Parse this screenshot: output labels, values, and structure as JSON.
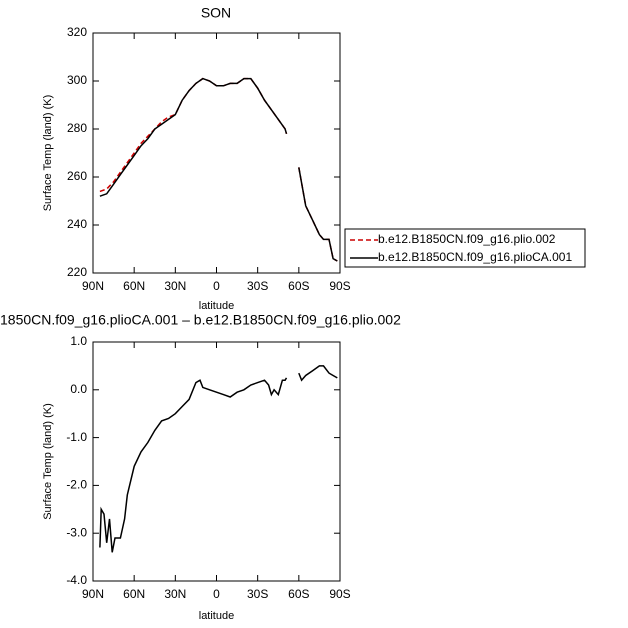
{
  "chart_data": [
    {
      "type": "line",
      "title": "SON",
      "y_label": "Surface Temp (land) (K)",
      "x_label": "latitude",
      "x": [
        85,
        80,
        75,
        70,
        65,
        60,
        55,
        50,
        45,
        40,
        35,
        30,
        25,
        20,
        15,
        10,
        5,
        0,
        -5,
        -10,
        -15,
        -20,
        -25,
        -30,
        -35,
        -40,
        -45,
        -50,
        -51,
        -55,
        -60,
        -65,
        -70,
        -75,
        -78,
        -82,
        -85,
        -88
      ],
      "series": [
        {
          "name": "b.e12.B1850CN.f09_g16.plio.002",
          "color": "#cc0000",
          "dash": true,
          "values": [
            254,
            255,
            258,
            262,
            266,
            270,
            274,
            277,
            280,
            283,
            285,
            286,
            292,
            296,
            299,
            301,
            300,
            298,
            298,
            299,
            299,
            301,
            301,
            297,
            292,
            288,
            284,
            280,
            278,
            null,
            264,
            248,
            242,
            236,
            234,
            234,
            226,
            225
          ]
        },
        {
          "name": "b.e12.B1850CN.f09_g16.plioCA.001",
          "color": "#000000",
          "dash": false,
          "values": [
            252,
            253,
            257,
            261,
            265,
            269,
            273,
            276,
            280,
            282,
            284,
            286,
            292,
            296,
            299,
            301,
            300,
            298,
            298,
            299,
            299,
            301,
            301,
            297,
            292,
            288,
            284,
            280,
            278,
            null,
            264,
            248,
            242,
            236,
            234,
            234,
            226,
            225
          ]
        }
      ],
      "xlim": [
        90,
        -90
      ],
      "xticks": [
        {
          "value": 90,
          "label": "90N"
        },
        {
          "value": 60,
          "label": "60N"
        },
        {
          "value": 30,
          "label": "30N"
        },
        {
          "value": 0,
          "label": "0"
        },
        {
          "value": -30,
          "label": "30S"
        },
        {
          "value": -60,
          "label": "60S"
        },
        {
          "value": -90,
          "label": "90S"
        }
      ],
      "ylim": [
        220,
        320
      ],
      "yticks": [
        220,
        240,
        260,
        280,
        300,
        320
      ],
      "legend": "right"
    },
    {
      "type": "line",
      "title": "1850CN.f09_g16.plioCA.001 – b.e12.B1850CN.f09_g16.plio.002",
      "y_label": "Surface Temp (land) (K)",
      "x_label": "latitude",
      "x": [
        85,
        84,
        82,
        80,
        78,
        76,
        74,
        70,
        67,
        65,
        60,
        55,
        50,
        45,
        40,
        35,
        30,
        25,
        20,
        15,
        12,
        10,
        5,
        0,
        -5,
        -10,
        -15,
        -20,
        -25,
        -30,
        -35,
        -38,
        -40,
        -42,
        -45,
        -48,
        -50,
        -51,
        -55,
        -60,
        -62,
        -65,
        -70,
        -75,
        -78,
        -82,
        -85,
        -88
      ],
      "series": [
        {
          "color": "#000000",
          "dash": false,
          "values": [
            -3.3,
            -2.5,
            -2.6,
            -3.2,
            -2.7,
            -3.4,
            -3.1,
            -3.1,
            -2.7,
            -2.2,
            -1.6,
            -1.3,
            -1.1,
            -0.85,
            -0.65,
            -0.6,
            -0.5,
            -0.35,
            -0.2,
            0.15,
            0.2,
            0.05,
            0.0,
            -0.05,
            -0.1,
            -0.15,
            -0.05,
            0.0,
            0.1,
            0.15,
            0.2,
            0.1,
            -0.1,
            0.0,
            -0.1,
            0.2,
            0.2,
            0.25,
            null,
            0.35,
            0.2,
            0.3,
            0.4,
            0.5,
            0.5,
            0.35,
            0.3,
            0.25
          ]
        }
      ],
      "xlim": [
        90,
        -90
      ],
      "xticks": [
        {
          "value": 90,
          "label": "90N"
        },
        {
          "value": 60,
          "label": "60N"
        },
        {
          "value": 30,
          "label": "30N"
        },
        {
          "value": 0,
          "label": "0"
        },
        {
          "value": -30,
          "label": "30S"
        },
        {
          "value": -60,
          "label": "60S"
        },
        {
          "value": -90,
          "label": "90S"
        }
      ],
      "ylim": [
        -4,
        1
      ],
      "yticks": [
        {
          "value": -4,
          "label": "-4.0"
        },
        {
          "value": -3,
          "label": "-3.0"
        },
        {
          "value": -2,
          "label": "-2.0"
        },
        {
          "value": -1,
          "label": "-1.0"
        },
        {
          "value": 0,
          "label": "0.0"
        },
        {
          "value": 1,
          "label": "1.0"
        }
      ]
    }
  ]
}
